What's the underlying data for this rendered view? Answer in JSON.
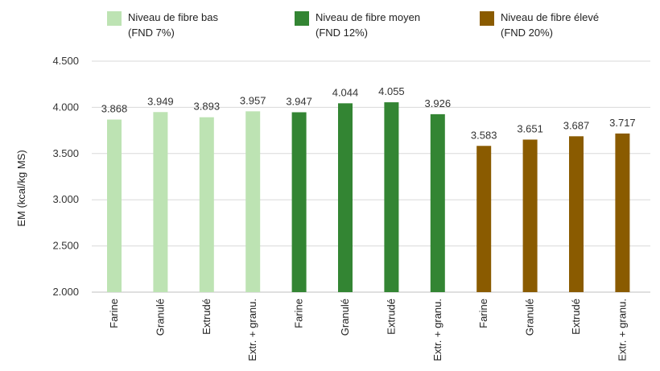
{
  "chart_data": {
    "type": "bar",
    "ylabel": "EM (kcal/kg MS)",
    "ylim": [
      2000,
      4500
    ],
    "yticks": [
      2000,
      2500,
      3000,
      3500,
      4000,
      4500
    ],
    "ytick_labels": [
      "2.000",
      "2.500",
      "3.000",
      "3.500",
      "4.000",
      "4.500"
    ],
    "grid": true,
    "legend_position": "top",
    "series": [
      {
        "name_line1": "Niveau de fibre bas",
        "name_line2": "(FND 7%)",
        "color": "#bde3b3",
        "categories": [
          "Farine",
          "Granulé",
          "Extrudé",
          "Extr. + granu."
        ],
        "values": [
          3868,
          3949,
          3893,
          3957
        ],
        "value_labels": [
          "3.868",
          "3.949",
          "3.893",
          "3.957"
        ]
      },
      {
        "name_line1": "Niveau de fibre moyen",
        "name_line2": "(FND 12%)",
        "color": "#338533",
        "categories": [
          "Farine",
          "Granulé",
          "Extrudé",
          "Extr. + granu."
        ],
        "values": [
          3947,
          4044,
          4055,
          3926
        ],
        "value_labels": [
          "3.947",
          "4.044",
          "4.055",
          "3.926"
        ]
      },
      {
        "name_line1": "Niveau de fibre élevé",
        "name_line2": "(FND 20%)",
        "color": "#8a5b00",
        "categories": [
          "Farine",
          "Granulé",
          "Extrudé",
          "Extr. + granu."
        ],
        "values": [
          3583,
          3651,
          3687,
          3717
        ],
        "value_labels": [
          "3.583",
          "3.651",
          "3.687",
          "3.717"
        ]
      }
    ]
  }
}
